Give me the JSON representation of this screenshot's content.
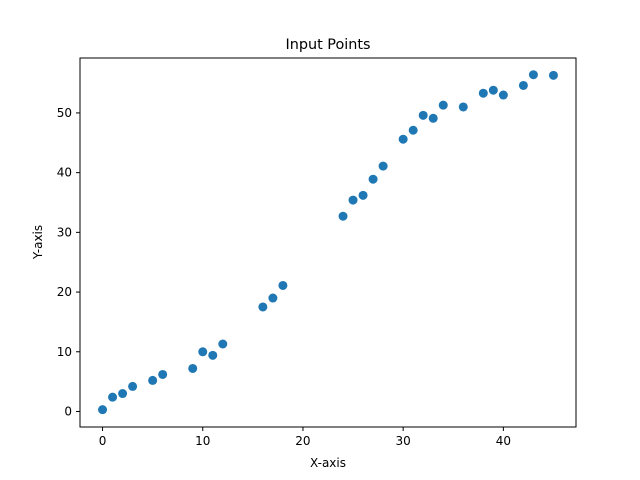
{
  "chart_data": {
    "type": "scatter",
    "title": "Input Points",
    "xlabel": "X-axis",
    "ylabel": "Y-axis",
    "xlim": [
      -2.25,
      47.25
    ],
    "ylim": [
      -2.6,
      59.2
    ],
    "xticks": [
      0,
      10,
      20,
      30,
      40
    ],
    "yticks": [
      0,
      10,
      20,
      30,
      40,
      50
    ],
    "grid": false,
    "marker_color": "#1f77b4",
    "series": [
      {
        "points": [
          [
            0,
            0.3
          ],
          [
            1,
            2.4
          ],
          [
            2,
            3.0
          ],
          [
            3,
            4.2
          ],
          [
            5,
            5.2
          ],
          [
            6,
            6.2
          ],
          [
            9,
            7.2
          ],
          [
            10,
            10.0
          ],
          [
            11,
            9.4
          ],
          [
            12,
            11.3
          ],
          [
            16,
            17.5
          ],
          [
            17,
            19.0
          ],
          [
            18,
            21.1
          ],
          [
            24,
            32.7
          ],
          [
            25,
            35.4
          ],
          [
            26,
            36.2
          ],
          [
            27,
            38.9
          ],
          [
            28,
            41.1
          ],
          [
            30,
            45.6
          ],
          [
            31,
            47.1
          ],
          [
            32,
            49.6
          ],
          [
            33,
            49.1
          ],
          [
            34,
            51.3
          ],
          [
            36,
            51.0
          ],
          [
            38,
            53.3
          ],
          [
            39,
            53.8
          ],
          [
            40,
            53.0
          ],
          [
            42,
            54.6
          ],
          [
            43,
            56.4
          ],
          [
            45,
            56.3
          ]
        ]
      }
    ]
  }
}
